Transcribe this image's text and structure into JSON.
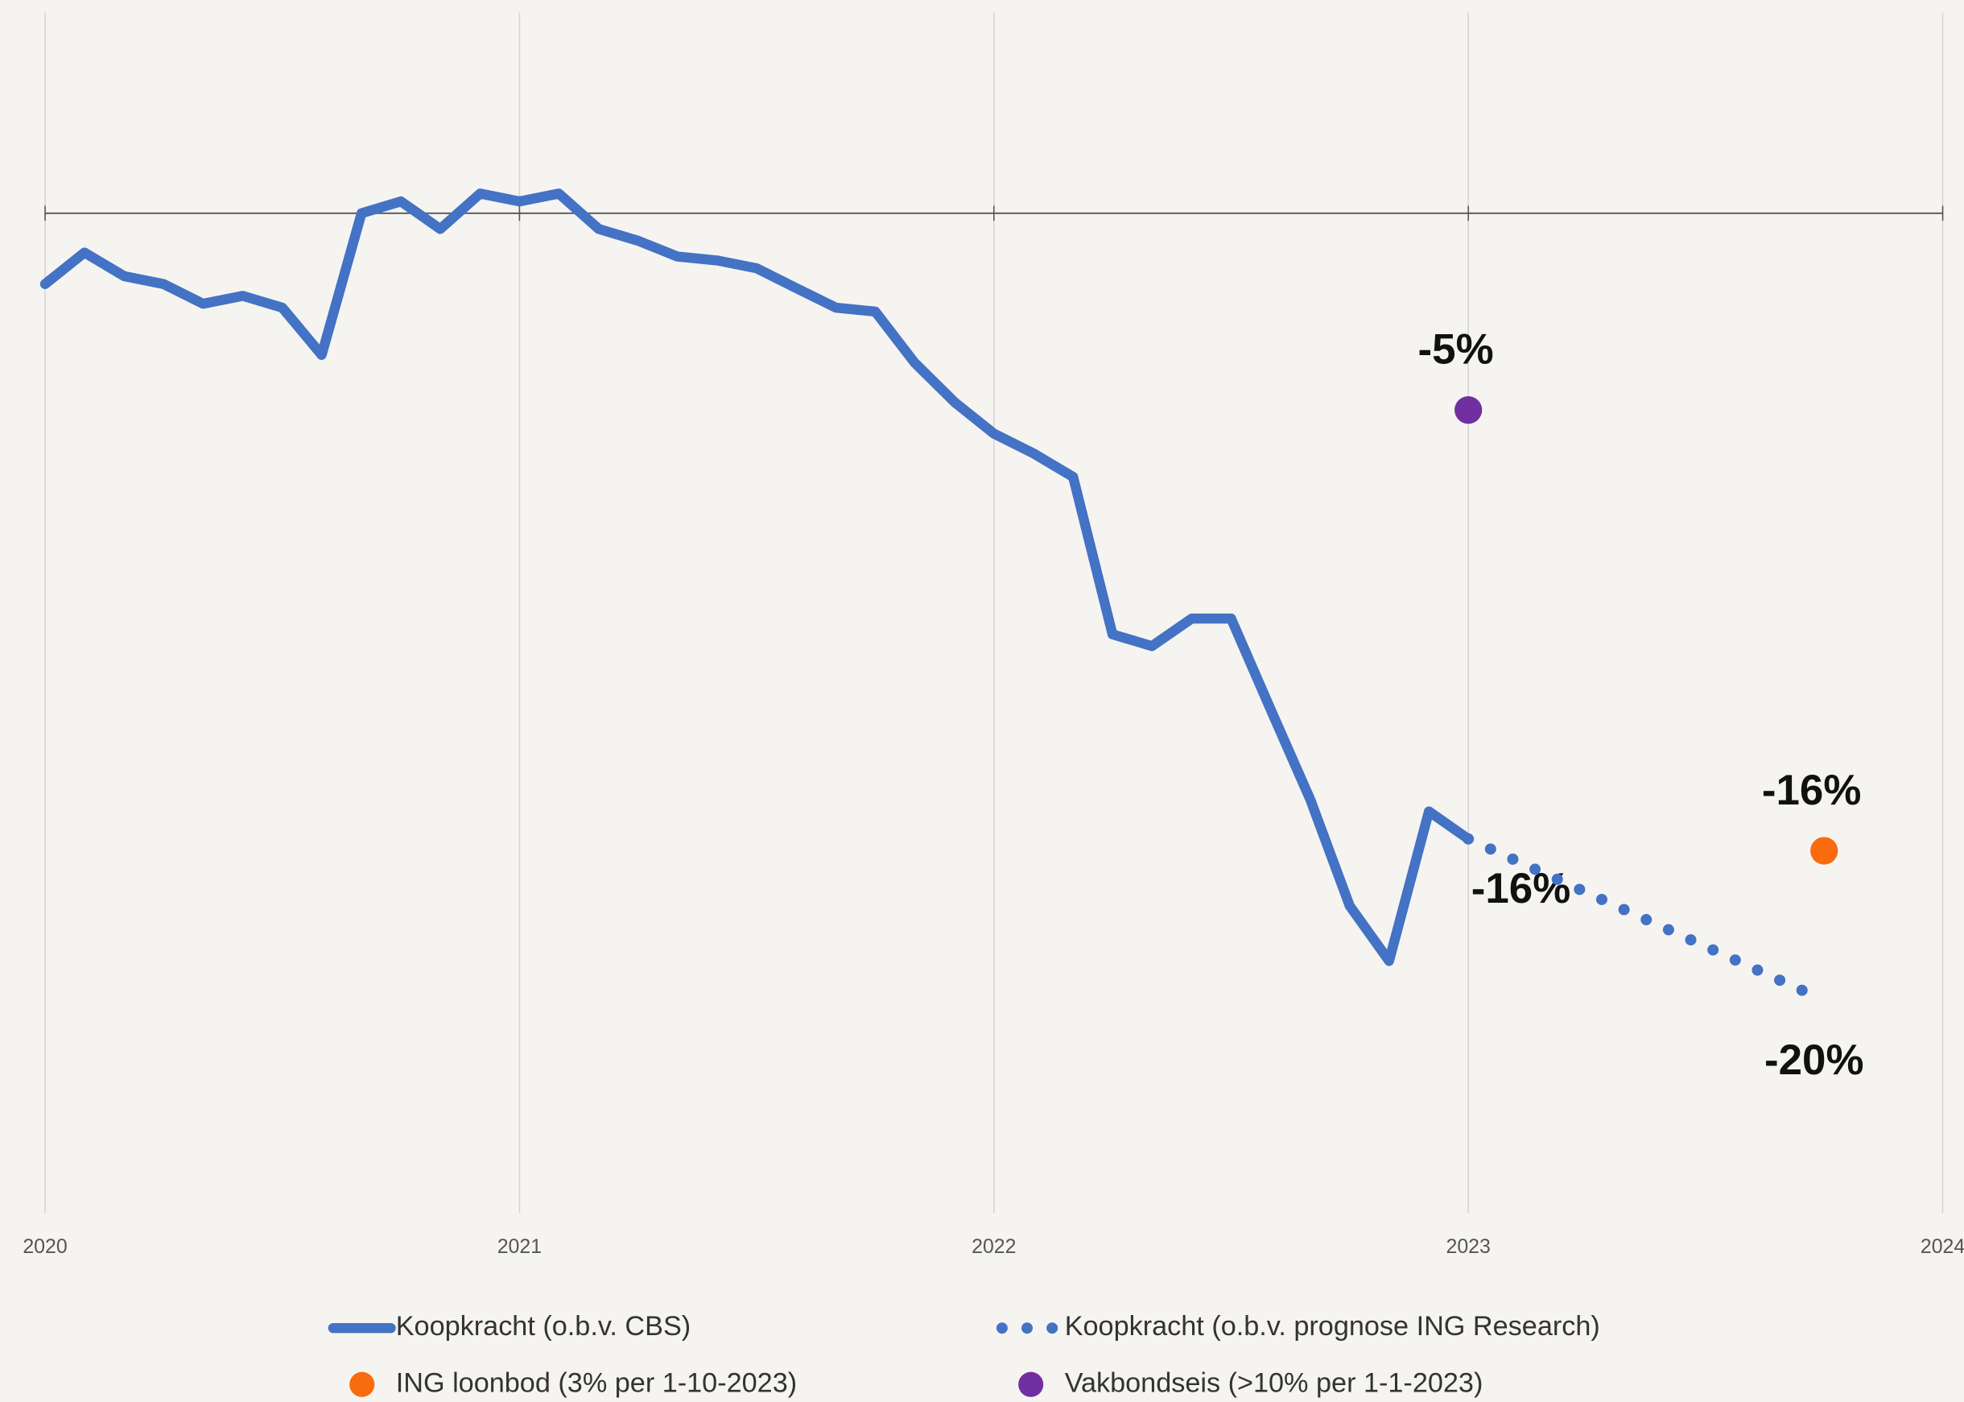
{
  "chart_data": {
    "type": "line",
    "xlim": [
      2020,
      2024
    ],
    "xticks": [
      2020,
      2021,
      2022,
      2023,
      2024
    ],
    "ylim": [
      -25.4,
      5.1
    ],
    "grid": true,
    "series": [
      {
        "name": "Koopkracht (o.b.v. CBS)",
        "color": "#4472c4",
        "style": "solid",
        "x": [
          2020,
          2020.083,
          2020.167,
          2020.25,
          2020.333,
          2020.417,
          2020.5,
          2020.583,
          2020.667,
          2020.75,
          2020.833,
          2020.917,
          2021,
          2021.083,
          2021.167,
          2021.25,
          2021.333,
          2021.417,
          2021.5,
          2021.583,
          2021.667,
          2021.75,
          2021.833,
          2021.917,
          2022,
          2022.083,
          2022.167,
          2022.25,
          2022.333,
          2022.417,
          2022.5,
          2022.583,
          2022.667,
          2022.75,
          2022.833,
          2022.917,
          2023
        ],
        "values": [
          -1.8,
          -1.0,
          -1.6,
          -1.8,
          -2.3,
          -2.1,
          -2.4,
          -3.6,
          0,
          0.3,
          -0.4,
          0.5,
          0.3,
          0.5,
          -0.4,
          -0.7,
          -1.1,
          -1.2,
          -1.4,
          -1.9,
          -2.4,
          -2.5,
          -3.8,
          -4.8,
          -5.6,
          -6.1,
          -6.7,
          -10.7,
          -11.0,
          -10.3,
          -10.3,
          -12.6,
          -14.9,
          -17.6,
          -19.0,
          -15.2,
          -15.9
        ],
        "value_labels": [
          null,
          null,
          null,
          null,
          null,
          null,
          null,
          null,
          null,
          null,
          null,
          null,
          null,
          null,
          null,
          null,
          null,
          null,
          null,
          null,
          null,
          null,
          null,
          null,
          null,
          null,
          null,
          null,
          null,
          null,
          null,
          null,
          null,
          null,
          null,
          null,
          "-16%"
        ]
      },
      {
        "name": "Koopkracht (o.b.v. prognose ING Research)",
        "color": "#4472c4",
        "style": "dotted",
        "x": [
          2023,
          2023.75
        ],
        "values": [
          -15.9,
          -20
        ],
        "value_labels": [
          null,
          "-20%"
        ]
      },
      {
        "name": "ING loonbod (3% per 1-10-2023)",
        "color": "#f96b0f",
        "style": "point",
        "x": [
          2023.75
        ],
        "values": [
          -16.2
        ],
        "value_labels": [
          "-16%"
        ]
      },
      {
        "name": "Vakbondseis (>10% per 1-1-2023)",
        "color": "#7030a0",
        "style": "point",
        "x": [
          2023
        ],
        "values": [
          -5
        ],
        "value_labels": [
          "-5%"
        ]
      }
    ]
  }
}
